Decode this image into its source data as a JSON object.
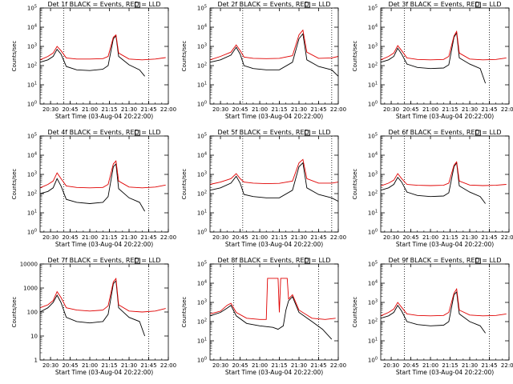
{
  "colors": {
    "events": "#000000",
    "lld": "#e00000",
    "frame": "#000000",
    "background": "#ffffff"
  },
  "chart_data": [
    {
      "type": "line",
      "detector": "1f",
      "title": "Det 1f BLACK = Events, RED = LLD",
      "xlabel": "Start Time (03-Aug-04 20:22:00)",
      "ylabel": "Counts/sec",
      "xlim": [
        "20:22",
        "22:00"
      ],
      "ylim": [
        1,
        100000
      ],
      "yscale": "log",
      "ytick_style": "power",
      "xticks": [
        "20:30",
        "20:45",
        "21:00",
        "21:15",
        "21:30",
        "21:45",
        "22:00"
      ],
      "yticks": [
        "10^0",
        "10^1",
        "10^2",
        "10^3",
        "10^4",
        "10^5"
      ],
      "vlines": [
        "20:40",
        "21:45"
      ],
      "series": [
        {
          "role": "events",
          "x": [
            "20:22",
            "20:28",
            "20:32",
            "20:35",
            "20:38",
            "20:42",
            "20:50",
            "21:00",
            "21:10",
            "21:14",
            "21:18",
            "21:20",
            "21:22",
            "21:30",
            "21:38",
            "21:42"
          ],
          "values": [
            150,
            200,
            300,
            700,
            400,
            90,
            60,
            55,
            65,
            100,
            2500,
            3500,
            300,
            110,
            60,
            28
          ]
        },
        {
          "role": "lld",
          "x": [
            "20:22",
            "20:28",
            "20:32",
            "20:35",
            "20:38",
            "20:42",
            "20:50",
            "21:00",
            "21:10",
            "21:14",
            "21:18",
            "21:20",
            "21:22",
            "21:30",
            "21:40",
            "21:50",
            "21:58"
          ],
          "values": [
            200,
            300,
            450,
            1000,
            600,
            250,
            220,
            220,
            230,
            300,
            3000,
            4000,
            450,
            220,
            200,
            220,
            260
          ]
        }
      ]
    },
    {
      "type": "line",
      "detector": "2f",
      "title": "Det 2f BLACK = Events, RED = LLD",
      "xlabel": "Start Time (03-Aug-04 20:22:00)",
      "ylabel": "Counts/sec",
      "xlim": [
        "20:22",
        "22:00"
      ],
      "ylim": [
        1,
        100000
      ],
      "yscale": "log",
      "ytick_style": "power",
      "xticks": [
        "20:30",
        "20:45",
        "21:00",
        "21:15",
        "21:30",
        "21:45",
        "22:00"
      ],
      "yticks": [
        "10^0",
        "10^1",
        "10^2",
        "10^3",
        "10^4",
        "10^5"
      ],
      "vlines": [
        "20:47",
        "21:55"
      ],
      "series": [
        {
          "role": "events",
          "x": [
            "20:22",
            "20:30",
            "20:38",
            "20:42",
            "20:45",
            "20:48",
            "20:55",
            "21:05",
            "21:15",
            "21:25",
            "21:30",
            "21:33",
            "21:36",
            "21:45",
            "21:55",
            "22:00"
          ],
          "values": [
            150,
            200,
            350,
            900,
            400,
            100,
            70,
            60,
            60,
            150,
            2500,
            4500,
            200,
            90,
            60,
            28
          ]
        },
        {
          "role": "lld",
          "x": [
            "20:22",
            "20:30",
            "20:38",
            "20:42",
            "20:45",
            "20:48",
            "20:55",
            "21:05",
            "21:15",
            "21:25",
            "21:30",
            "21:33",
            "21:36",
            "21:45",
            "21:55",
            "22:00"
          ],
          "values": [
            200,
            300,
            500,
            1200,
            600,
            280,
            240,
            230,
            240,
            330,
            4000,
            7000,
            500,
            240,
            250,
            300
          ]
        }
      ]
    },
    {
      "type": "line",
      "detector": "3f",
      "title": "Det 3f BLACK = Events, RED = LLD",
      "xlabel": "Start Time (03-Aug-04 20:22:00)",
      "ylabel": "Counts/sec",
      "xlim": [
        "20:22",
        "22:00"
      ],
      "ylim": [
        1,
        100000
      ],
      "yscale": "log",
      "ytick_style": "power",
      "xticks": [
        "20:30",
        "20:45",
        "21:00",
        "21:15",
        "21:30",
        "21:45",
        "22:00"
      ],
      "yticks": [
        "10^0",
        "10^1",
        "10^2",
        "10^3",
        "10^4",
        "10^5"
      ],
      "vlines": [
        "20:40",
        "21:45"
      ],
      "series": [
        {
          "role": "events",
          "x": [
            "20:22",
            "20:28",
            "20:32",
            "20:35",
            "20:38",
            "20:42",
            "20:50",
            "21:00",
            "21:10",
            "21:14",
            "21:18",
            "21:20",
            "21:22",
            "21:30",
            "21:38",
            "21:42"
          ],
          "values": [
            150,
            200,
            300,
            800,
            400,
            120,
            80,
            70,
            75,
            110,
            3000,
            5000,
            250,
            120,
            70,
            12
          ]
        },
        {
          "role": "lld",
          "x": [
            "20:22",
            "20:28",
            "20:32",
            "20:35",
            "20:38",
            "20:42",
            "20:50",
            "21:00",
            "21:10",
            "21:14",
            "21:18",
            "21:20",
            "21:22",
            "21:30",
            "21:40",
            "21:50",
            "21:58"
          ],
          "values": [
            200,
            300,
            450,
            1100,
            600,
            250,
            210,
            200,
            210,
            300,
            3500,
            6000,
            450,
            220,
            200,
            210,
            250
          ]
        }
      ]
    },
    {
      "type": "line",
      "detector": "4f",
      "title": "Det 4f BLACK = Events, RED = LLD",
      "xlabel": "Start Time (03-Aug-04 20:22:00)",
      "ylabel": "Counts/sec",
      "xlim": [
        "20:22",
        "22:00"
      ],
      "ylim": [
        1,
        100000
      ],
      "yscale": "log",
      "ytick_style": "power",
      "xticks": [
        "20:30",
        "20:45",
        "21:00",
        "21:15",
        "21:30",
        "21:45",
        "22:00"
      ],
      "yticks": [
        "10^0",
        "10^1",
        "10^2",
        "10^3",
        "10^4",
        "10^5"
      ],
      "vlines": [
        "20:40",
        "21:45"
      ],
      "series": [
        {
          "role": "events",
          "x": [
            "20:22",
            "20:28",
            "20:32",
            "20:35",
            "20:38",
            "20:42",
            "20:50",
            "21:00",
            "21:10",
            "21:14",
            "21:18",
            "21:20",
            "21:22",
            "21:30",
            "21:38",
            "21:42"
          ],
          "values": [
            100,
            130,
            200,
            600,
            250,
            50,
            35,
            30,
            35,
            70,
            2500,
            3500,
            180,
            60,
            35,
            12
          ]
        },
        {
          "role": "lld",
          "x": [
            "20:22",
            "20:28",
            "20:32",
            "20:35",
            "20:38",
            "20:42",
            "20:50",
            "21:00",
            "21:10",
            "21:14",
            "21:18",
            "21:20",
            "21:22",
            "21:30",
            "21:40",
            "21:50",
            "21:58"
          ],
          "values": [
            200,
            300,
            450,
            1200,
            600,
            250,
            210,
            200,
            210,
            300,
            3500,
            5000,
            450,
            220,
            200,
            220,
            280
          ]
        }
      ]
    },
    {
      "type": "line",
      "detector": "5f",
      "title": "Det 5f BLACK = Events, RED = LLD",
      "xlabel": "Start Time (03-Aug-04 20:22:00)",
      "ylabel": "Counts/sec",
      "xlim": [
        "20:22",
        "22:00"
      ],
      "ylim": [
        1,
        100000
      ],
      "yscale": "log",
      "ytick_style": "power",
      "xticks": [
        "20:30",
        "20:45",
        "21:00",
        "21:15",
        "21:30",
        "21:45",
        "22:00"
      ],
      "yticks": [
        "10^0",
        "10^1",
        "10^2",
        "10^3",
        "10^4",
        "10^5"
      ],
      "vlines": [
        "20:47",
        "21:55"
      ],
      "series": [
        {
          "role": "events",
          "x": [
            "20:22",
            "20:30",
            "20:38",
            "20:42",
            "20:45",
            "20:48",
            "20:55",
            "21:05",
            "21:15",
            "21:25",
            "21:30",
            "21:33",
            "21:36",
            "21:45",
            "21:55",
            "22:00"
          ],
          "values": [
            150,
            200,
            350,
            800,
            350,
            90,
            70,
            60,
            60,
            150,
            2500,
            4000,
            200,
            90,
            60,
            40
          ]
        },
        {
          "role": "lld",
          "x": [
            "20:22",
            "20:30",
            "20:38",
            "20:42",
            "20:45",
            "20:48",
            "20:55",
            "21:05",
            "21:15",
            "21:25",
            "21:30",
            "21:33",
            "21:36",
            "21:45",
            "21:55",
            "22:00"
          ],
          "values": [
            300,
            400,
            600,
            1100,
            600,
            400,
            350,
            330,
            340,
            450,
            4000,
            6000,
            600,
            350,
            350,
            400
          ]
        }
      ]
    },
    {
      "type": "line",
      "detector": "6f",
      "title": "Det 6f BLACK = Events, RED = LLD",
      "xlabel": "Start Time (03-Aug-04 20:22:00)",
      "ylabel": "Counts/sec",
      "xlim": [
        "20:22",
        "22:00"
      ],
      "ylim": [
        1,
        100000
      ],
      "yscale": "log",
      "ytick_style": "power",
      "xticks": [
        "20:30",
        "20:45",
        "21:00",
        "21:15",
        "21:30",
        "21:45",
        "22:00"
      ],
      "yticks": [
        "10^0",
        "10^1",
        "10^2",
        "10^3",
        "10^4",
        "10^5"
      ],
      "vlines": [
        "20:40",
        "21:45"
      ],
      "series": [
        {
          "role": "events",
          "x": [
            "20:22",
            "20:28",
            "20:32",
            "20:35",
            "20:38",
            "20:42",
            "20:50",
            "21:00",
            "21:10",
            "21:14",
            "21:18",
            "21:20",
            "21:22",
            "21:30",
            "21:38",
            "21:42"
          ],
          "values": [
            150,
            200,
            300,
            700,
            400,
            120,
            80,
            70,
            75,
            110,
            2500,
            4000,
            250,
            120,
            70,
            30
          ]
        },
        {
          "role": "lld",
          "x": [
            "20:22",
            "20:28",
            "20:32",
            "20:35",
            "20:38",
            "20:42",
            "20:50",
            "21:00",
            "21:10",
            "21:14",
            "21:18",
            "21:20",
            "21:22",
            "21:30",
            "21:40",
            "21:50",
            "21:58"
          ],
          "values": [
            250,
            350,
            500,
            1100,
            600,
            300,
            270,
            260,
            270,
            350,
            3000,
            4500,
            450,
            280,
            260,
            270,
            300
          ]
        }
      ]
    },
    {
      "type": "line",
      "detector": "7f",
      "title": "Det 7f BLACK = Events, RED = LLD",
      "xlabel": "Start Time (03-Aug-04 20:22:00)",
      "ylabel": "Counts/sec",
      "xlim": [
        "20:22",
        "22:00"
      ],
      "ylim": [
        1,
        10000
      ],
      "yscale": "log",
      "ytick_style": "decimal",
      "xticks": [
        "20:30",
        "20:45",
        "21:00",
        "21:15",
        "21:30",
        "21:45",
        "22:00"
      ],
      "yticks": [
        "1",
        "10",
        "100",
        "1000",
        "10000"
      ],
      "vlines": [
        "20:40",
        "21:45"
      ],
      "series": [
        {
          "role": "events",
          "x": [
            "20:22",
            "20:28",
            "20:32",
            "20:35",
            "20:38",
            "20:42",
            "20:50",
            "21:00",
            "21:10",
            "21:14",
            "21:18",
            "21:20",
            "21:22",
            "21:30",
            "21:38",
            "21:42"
          ],
          "values": [
            100,
            150,
            250,
            500,
            250,
            60,
            40,
            35,
            40,
            80,
            1500,
            2000,
            150,
            60,
            40,
            10
          ]
        },
        {
          "role": "lld",
          "x": [
            "20:22",
            "20:28",
            "20:32",
            "20:35",
            "20:38",
            "20:42",
            "20:50",
            "21:00",
            "21:10",
            "21:14",
            "21:18",
            "21:20",
            "21:22",
            "21:30",
            "21:40",
            "21:50",
            "21:58"
          ],
          "values": [
            150,
            200,
            300,
            700,
            400,
            150,
            120,
            110,
            120,
            180,
            1800,
            2500,
            200,
            110,
            100,
            110,
            140
          ]
        }
      ]
    },
    {
      "type": "line",
      "detector": "8f",
      "title": "Det 8f BLACK = Events, RED = LLD",
      "xlabel": "Start Time (03-Aug-04 20:22:00)",
      "ylabel": "Counts/sec",
      "xlim": [
        "20:22",
        "22:00"
      ],
      "ylim": [
        1,
        100000
      ],
      "yscale": "log",
      "ytick_style": "power",
      "xticks": [
        "20:30",
        "20:45",
        "21:00",
        "21:15",
        "21:30",
        "21:45",
        "22:00"
      ],
      "yticks": [
        "10^0",
        "10^1",
        "10^2",
        "10^3",
        "10^4",
        "10^5"
      ],
      "vlines": [
        "20:40",
        "21:45"
      ],
      "series": [
        {
          "role": "events",
          "x": [
            "20:22",
            "20:30",
            "20:35",
            "20:38",
            "20:42",
            "20:50",
            "21:00",
            "21:10",
            "21:14",
            "21:18",
            "21:20",
            "21:22",
            "21:25",
            "21:30",
            "21:40",
            "21:48",
            "21:55"
          ],
          "values": [
            200,
            300,
            500,
            700,
            200,
            80,
            60,
            50,
            40,
            60,
            400,
            1200,
            2000,
            300,
            100,
            40,
            12
          ]
        },
        {
          "role": "lld",
          "x": [
            "20:22",
            "20:30",
            "20:35",
            "20:38",
            "20:42",
            "20:50",
            "21:00",
            "21:05",
            "21:06",
            "21:14",
            "21:15",
            "21:16",
            "21:17",
            "21:21",
            "21:22",
            "21:25",
            "21:30",
            "21:40",
            "21:50",
            "21:58"
          ],
          "values": [
            250,
            350,
            700,
            900,
            300,
            150,
            130,
            130,
            18000,
            18000,
            300,
            18000,
            18000,
            18000,
            1500,
            2500,
            400,
            150,
            130,
            150
          ]
        }
      ]
    },
    {
      "type": "line",
      "detector": "9f",
      "title": "Det 9f BLACK = Events, RED = LLD",
      "xlabel": "Start Time (03-Aug-04 20:22:00)",
      "ylabel": "Counts/sec",
      "xlim": [
        "20:22",
        "22:00"
      ],
      "ylim": [
        1,
        100000
      ],
      "yscale": "log",
      "ytick_style": "power",
      "xticks": [
        "20:30",
        "20:45",
        "21:00",
        "21:15",
        "21:30",
        "21:45",
        "22:00"
      ],
      "yticks": [
        "10^0",
        "10^1",
        "10^2",
        "10^3",
        "10^4",
        "10^5"
      ],
      "vlines": [
        "20:40",
        "21:45"
      ],
      "series": [
        {
          "role": "events",
          "x": [
            "20:22",
            "20:28",
            "20:32",
            "20:35",
            "20:38",
            "20:42",
            "20:50",
            "21:00",
            "21:10",
            "21:14",
            "21:18",
            "21:20",
            "21:22",
            "21:30",
            "21:38",
            "21:42"
          ],
          "values": [
            150,
            200,
            300,
            700,
            350,
            100,
            70,
            60,
            65,
            100,
            2500,
            3500,
            250,
            100,
            60,
            25
          ]
        },
        {
          "role": "lld",
          "x": [
            "20:22",
            "20:28",
            "20:32",
            "20:35",
            "20:38",
            "20:42",
            "20:50",
            "21:00",
            "21:10",
            "21:14",
            "21:18",
            "21:20",
            "21:22",
            "21:30",
            "21:40",
            "21:50",
            "21:58"
          ],
          "values": [
            200,
            300,
            450,
            1000,
            550,
            250,
            210,
            200,
            210,
            300,
            3000,
            5000,
            400,
            220,
            200,
            210,
            250
          ]
        }
      ]
    }
  ]
}
